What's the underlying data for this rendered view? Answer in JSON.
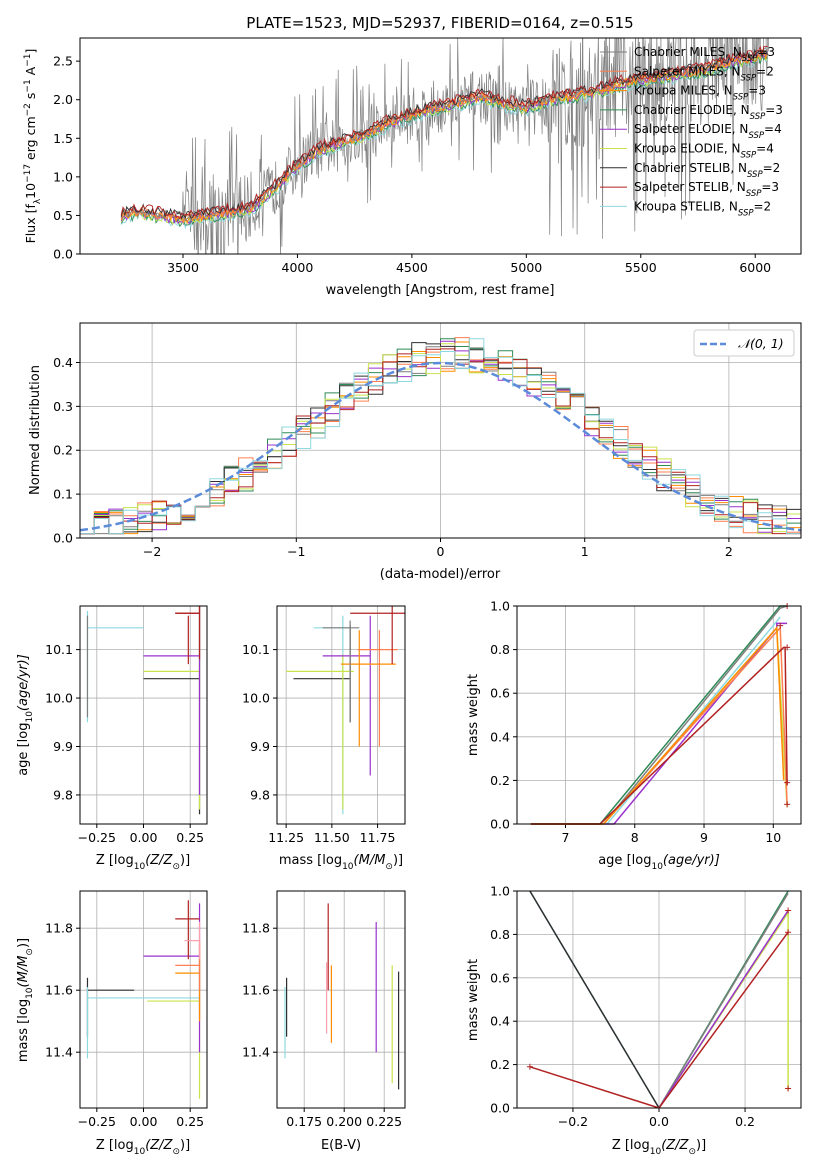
{
  "colors": {
    "chabrier_miles": "#7f7f7f",
    "salpeter_miles": "#ff7f50",
    "kroupa_miles": "#ff8c00",
    "chabrier_elodie": "#2e8b57",
    "salpeter_elodie": "#9932cc",
    "kroupa_elodie": "#c8e34c",
    "chabrier_stelib": "#2f2f2f",
    "salpeter_stelib": "#b22222",
    "kroupa_stelib": "#8ed8e0",
    "normal": "#5b8bd9",
    "pink": "#ff9fae"
  },
  "chart_data": [
    {
      "id": "spectrum",
      "type": "line",
      "title": "PLATE=1523, MJD=52937, FIBERID=0164, z=0.515",
      "xlabel": "wavelength [Angstrom, rest frame]",
      "ylabel_main": "Flux [f",
      "ylabel_sub": "λ",
      "ylabel_rest": "10",
      "ylabel_exp": "−17",
      "ylabel_tail": " erg cm",
      "ylabel_exp2": "−2",
      "ylabel_tail2": " s",
      "ylabel_exp3": "−1",
      "ylabel_tail3": " A",
      "ylabel_exp4": "−1",
      "ylabel_end": "]",
      "xlim": [
        3050,
        6200
      ],
      "ylim": [
        0,
        2.8
      ],
      "xticks": [
        3500,
        4000,
        4500,
        5000,
        5500,
        6000
      ],
      "yticks": [
        "0.0",
        "0.5",
        "1.0",
        "1.5",
        "2.0",
        "2.5"
      ],
      "ytick_values": [
        0,
        0.5,
        1.0,
        1.5,
        2.0,
        2.5
      ],
      "legend": [
        {
          "lib": "Chabrier MILES",
          "n": "3",
          "key": "chabrier_miles"
        },
        {
          "lib": "Salpeter MILES",
          "n": "2",
          "key": "salpeter_miles"
        },
        {
          "lib": "Kroupa MILES",
          "n": "3",
          "key": "kroupa_miles"
        },
        {
          "lib": "Chabrier ELODIE",
          "n": "3",
          "key": "chabrier_elodie"
        },
        {
          "lib": "Salpeter ELODIE",
          "n": "4",
          "key": "salpeter_elodie"
        },
        {
          "lib": "Kroupa ELODIE",
          "n": "4",
          "key": "kroupa_elodie"
        },
        {
          "lib": "Chabrier STELIB",
          "n": "2",
          "key": "chabrier_stelib"
        },
        {
          "lib": "Salpeter STELIB",
          "n": "3",
          "key": "salpeter_stelib"
        },
        {
          "lib": "Kroupa STELIB",
          "n": "2",
          "key": "kroupa_stelib"
        }
      ],
      "legend_n_label": "N",
      "legend_n_sub": "SSP",
      "model_continuum": [
        [
          3230,
          0.5
        ],
        [
          3300,
          0.55
        ],
        [
          3400,
          0.5
        ],
        [
          3500,
          0.45
        ],
        [
          3600,
          0.5
        ],
        [
          3700,
          0.55
        ],
        [
          3800,
          0.6
        ],
        [
          3900,
          0.85
        ],
        [
          3950,
          1.0
        ],
        [
          4000,
          1.15
        ],
        [
          4100,
          1.35
        ],
        [
          4200,
          1.45
        ],
        [
          4300,
          1.55
        ],
        [
          4400,
          1.7
        ],
        [
          4500,
          1.8
        ],
        [
          4600,
          1.9
        ],
        [
          4700,
          1.95
        ],
        [
          4800,
          2.05
        ],
        [
          4900,
          1.95
        ],
        [
          5000,
          1.9
        ],
        [
          5100,
          2.0
        ],
        [
          5200,
          2.05
        ],
        [
          5300,
          2.1
        ],
        [
          5400,
          2.2
        ],
        [
          5500,
          2.25
        ],
        [
          5600,
          2.3
        ],
        [
          5700,
          2.35
        ],
        [
          5800,
          2.4
        ],
        [
          5900,
          2.5
        ],
        [
          6000,
          2.55
        ],
        [
          6060,
          2.6
        ]
      ]
    },
    {
      "id": "residual_hist",
      "type": "histogram",
      "xlabel": "(data-model)/error",
      "ylabel": "Normed distribution",
      "xlim": [
        -2.5,
        2.5
      ],
      "ylim": [
        0,
        0.49
      ],
      "xticks": [
        "−2",
        "−1",
        "0",
        "1",
        "2"
      ],
      "xtick_values": [
        -2,
        -1,
        0,
        1,
        2
      ],
      "yticks": [
        "0.0",
        "0.1",
        "0.2",
        "0.3",
        "0.4"
      ],
      "ytick_values": [
        0,
        0.1,
        0.2,
        0.3,
        0.4
      ],
      "legend_label": "𝒩(0, 1)",
      "bin_width": 0.1
    },
    {
      "id": "age_vs_Z",
      "type": "scatter",
      "xlabel": "Z [log",
      "xlabel_sub": "10",
      "xlabel_rest": "(Z/Z",
      "xlabel_sub2": "⊙",
      "xlabel_end": ")]",
      "ylabel": "age  [log",
      "ylabel_sub": "10",
      "ylabel_rest": "(age/yr)]",
      "xlim": [
        -0.34,
        0.34
      ],
      "ylim": [
        9.74,
        10.19
      ],
      "xticks": [
        "−0.25",
        "0.00",
        "0.25"
      ],
      "xtick_values": [
        -0.25,
        0,
        0.25
      ],
      "yticks": [
        "9.8",
        "9.9",
        "10.0",
        "10.1"
      ],
      "ytick_values": [
        9.8,
        9.9,
        10.0,
        10.1
      ]
    },
    {
      "id": "age_vs_mass",
      "type": "scatter",
      "xlabel": "mass [log",
      "xlabel_sub": "10",
      "xlabel_rest": "(M/M",
      "xlabel_sub2": "⊙",
      "xlabel_end": ")]",
      "xlim": [
        11.2,
        11.9
      ],
      "ylim": [
        9.74,
        10.19
      ],
      "xticks": [
        "11.25",
        "11.50",
        "11.75"
      ],
      "xtick_values": [
        11.25,
        11.5,
        11.75
      ],
      "yticks": [
        "9.8",
        "9.9",
        "10.0",
        "10.1"
      ],
      "ytick_values": [
        9.8,
        9.9,
        10.0,
        10.1
      ]
    },
    {
      "id": "cumulative_age",
      "type": "line",
      "xlabel": "age  [log",
      "xlabel_sub": "10",
      "xlabel_rest": "(age/yr)]",
      "ylabel": "mass weight",
      "xlim": [
        6.3,
        10.4
      ],
      "ylim": [
        0,
        1
      ],
      "xticks": [
        "7",
        "8",
        "9",
        "10"
      ],
      "xtick_values": [
        7,
        8,
        9,
        10
      ],
      "yticks": [
        "0.0",
        "0.2",
        "0.4",
        "0.6",
        "0.8",
        "1.0"
      ],
      "ytick_values": [
        0,
        0.2,
        0.4,
        0.6,
        0.8,
        1.0
      ]
    },
    {
      "id": "mass_vs_Z",
      "type": "scatter",
      "xlabel": "Z [log",
      "xlabel_sub": "10",
      "xlabel_rest": "(Z/Z",
      "xlabel_sub2": "⊙",
      "xlabel_end": ")]",
      "ylabel": "mass [log",
      "ylabel_sub": "10",
      "ylabel_rest": "(M/M",
      "ylabel_sub2": "⊙",
      "ylabel_end": ")]",
      "xlim": [
        -0.34,
        0.34
      ],
      "ylim": [
        11.22,
        11.92
      ],
      "xticks": [
        "−0.25",
        "0.00",
        "0.25"
      ],
      "xtick_values": [
        -0.25,
        0,
        0.25
      ],
      "yticks": [
        "11.4",
        "11.6",
        "11.8"
      ],
      "ytick_values": [
        11.4,
        11.6,
        11.8
      ]
    },
    {
      "id": "mass_vs_ebv",
      "type": "scatter",
      "xlabel": "E(B-V)",
      "xlim": [
        0.158,
        0.238
      ],
      "ylim": [
        11.22,
        11.92
      ],
      "xticks": [
        "0.175",
        "0.200",
        "0.225"
      ],
      "xtick_values": [
        0.175,
        0.2,
        0.225
      ],
      "yticks": [
        "11.4",
        "11.6",
        "11.8"
      ],
      "ytick_values": [
        11.4,
        11.6,
        11.8
      ]
    },
    {
      "id": "cumulative_Z",
      "type": "line",
      "xlabel": "Z [log",
      "xlabel_sub": "10",
      "xlabel_rest": "(Z/Z",
      "xlabel_sub2": "⊙",
      "xlabel_end": ")]",
      "ylabel": "mass weight",
      "xlim": [
        -0.33,
        0.33
      ],
      "ylim": [
        0,
        1
      ],
      "xticks": [
        "−0.2",
        "0.0",
        "0.2"
      ],
      "xtick_values": [
        -0.2,
        0,
        0.2
      ],
      "yticks": [
        "0.0",
        "0.2",
        "0.4",
        "0.6",
        "0.8",
        "1.0"
      ],
      "ytick_values": [
        0,
        0.2,
        0.4,
        0.6,
        0.8,
        1.0
      ]
    }
  ]
}
